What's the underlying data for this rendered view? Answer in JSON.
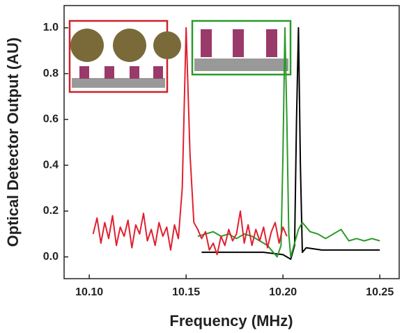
{
  "chart_data": {
    "type": "line",
    "x_label": "Frequency (MHz)",
    "y_label": "Optical Detector Output (AU)",
    "xlim": [
      10.087,
      10.26
    ],
    "ylim": [
      -0.095,
      1.097
    ],
    "xticks": [
      {
        "value": 10.1,
        "label": "10.10"
      },
      10.15,
      {
        "value": 10.2,
        "label": "10.20"
      },
      10.25
    ],
    "yticks": [
      {
        "value": 0,
        "label": "0.0"
      },
      0.2,
      0.4,
      0.6,
      0.8,
      {
        "value": 1,
        "label": "1.0"
      }
    ],
    "series": [
      {
        "color": "#000000",
        "x": [
          10.158,
          10.17,
          10.18,
          10.19,
          10.2,
          10.204,
          10.206,
          10.207,
          10.208,
          10.209,
          10.21,
          10.212,
          10.22,
          10.235,
          10.25
        ],
        "values": [
          0.02,
          0.02,
          0.02,
          0.02,
          0.01,
          -0.01,
          0.05,
          0.6,
          1.0,
          0.4,
          0.02,
          0.04,
          0.03,
          0.03,
          0.03
        ]
      },
      {
        "color": "#2a9a2a",
        "x": [
          10.156,
          10.16,
          10.164,
          10.168,
          10.172,
          10.176,
          10.18,
          10.184,
          10.188,
          10.192,
          10.195,
          10.197,
          10.199,
          10.2,
          10.201,
          10.202,
          10.203,
          10.204,
          10.206,
          10.208,
          10.21,
          10.214,
          10.218,
          10.222,
          10.226,
          10.23,
          10.234,
          10.238,
          10.242,
          10.246,
          10.25
        ],
        "values": [
          0.09,
          0.1,
          0.11,
          0.09,
          0.1,
          0.08,
          0.1,
          0.09,
          0.07,
          0.05,
          0.02,
          0.0,
          0.05,
          0.45,
          1.0,
          0.6,
          0.1,
          0.0,
          0.06,
          0.12,
          0.15,
          0.11,
          0.1,
          0.08,
          0.1,
          0.12,
          0.07,
          0.08,
          0.07,
          0.08,
          0.07
        ]
      },
      {
        "color": "#e02030",
        "x": [
          10.102,
          10.104,
          10.106,
          10.108,
          10.11,
          10.112,
          10.114,
          10.116,
          10.118,
          10.12,
          10.122,
          10.124,
          10.126,
          10.128,
          10.13,
          10.132,
          10.134,
          10.136,
          10.138,
          10.14,
          10.142,
          10.144,
          10.146,
          10.148,
          10.15,
          10.152,
          10.154,
          10.156,
          10.158,
          10.16,
          10.162,
          10.164,
          10.166,
          10.168,
          10.17,
          10.172,
          10.174,
          10.176,
          10.178,
          10.18,
          10.182,
          10.184,
          10.186,
          10.188,
          10.19,
          10.192,
          10.194,
          10.196,
          10.198,
          10.2,
          10.202
        ],
        "values": [
          0.1,
          0.17,
          0.06,
          0.15,
          0.08,
          0.18,
          0.05,
          0.13,
          0.09,
          0.16,
          0.04,
          0.14,
          0.1,
          0.19,
          0.07,
          0.12,
          0.05,
          0.15,
          0.09,
          0.13,
          0.03,
          0.14,
          0.08,
          0.3,
          1.0,
          0.45,
          0.15,
          0.12,
          0.08,
          0.11,
          0.03,
          0.06,
          0.01,
          0.09,
          0.05,
          0.12,
          0.07,
          0.1,
          0.2,
          0.06,
          0.14,
          0.05,
          0.12,
          0.07,
          0.13,
          0.04,
          0.11,
          0.15,
          0.06,
          0.13,
          0.09
        ]
      }
    ]
  }
}
